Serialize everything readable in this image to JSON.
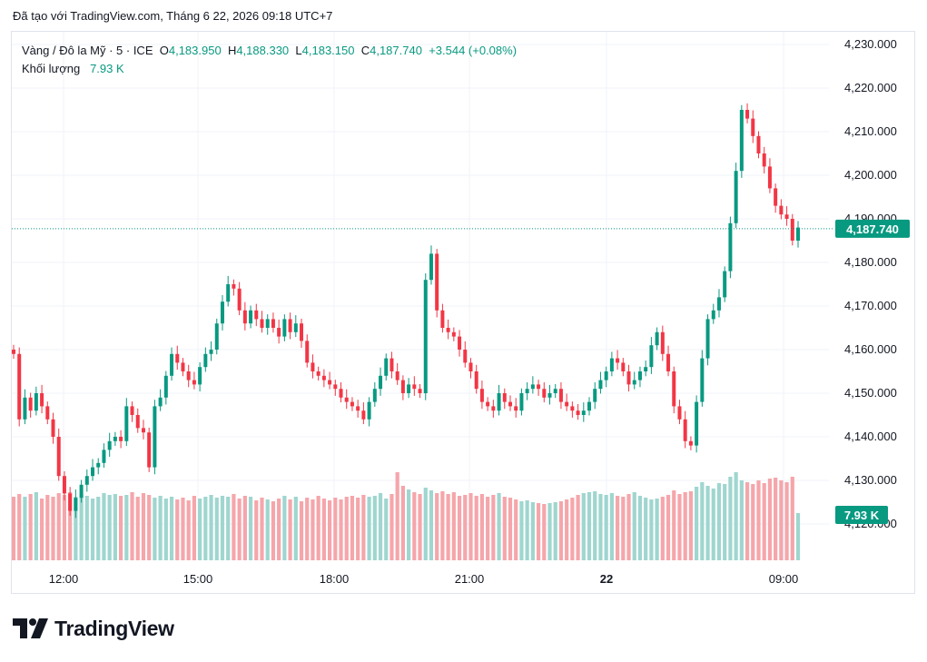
{
  "header": {
    "caption": "Đã tạo với TradingView.com, Tháng 6 22, 2026 09:18 UTC+7"
  },
  "legend": {
    "symbol": "Vàng / Đô la Mỹ · 5 · ICE",
    "o_label": "O",
    "o_value": "4,183.950",
    "h_label": "H",
    "h_value": "4,188.330",
    "l_label": "L",
    "l_value": "4,183.150",
    "c_label": "C",
    "c_value": "4,187.740",
    "change": "+3.544 (+0.08%)",
    "volume_label": "Khối lượng",
    "volume_value": "7.93 K"
  },
  "logo": {
    "text": "TradingView"
  },
  "colors": {
    "up": "#089981",
    "down": "#f23645",
    "up_volume": "#9fd6cf",
    "down_volume": "#f5a6ab",
    "grid": "#f0f3fa",
    "axis_text": "#131722"
  },
  "chart_data": {
    "type": "candlestick",
    "y_ticks": [
      "4,230.000",
      "4,220.000",
      "4,210.000",
      "4,200.000",
      "4,190.000",
      "4,180.000",
      "4,170.000",
      "4,160.000",
      "4,150.000",
      "4,140.000",
      "4,130.000",
      "4,120.000"
    ],
    "x_ticks": [
      "12:00",
      "15:00",
      "18:00",
      "21:00",
      "22",
      "09:00"
    ],
    "ylim": [
      4119,
      4230
    ],
    "last_price": 4187.74,
    "last_price_label": "4,187.740",
    "last_volume_label": "7.93 K",
    "closes": [
      4159,
      4144,
      4149,
      4146,
      4150,
      4147,
      4144,
      4140,
      4131,
      4127,
      4123,
      4126,
      4129,
      4131,
      4133,
      4134,
      4137,
      4139,
      4140,
      4139,
      4147,
      4145,
      4142,
      4141,
      4133,
      4147,
      4149,
      4154,
      4159,
      4157,
      4155,
      4153,
      4152,
      4156,
      4159,
      4160,
      4166,
      4171,
      4175,
      4174,
      4169,
      4166,
      4169,
      4167,
      4165,
      4167,
      4165,
      4163,
      4167,
      4164,
      4166,
      4162,
      4157,
      4155,
      4154,
      4153,
      4152,
      4151,
      4149,
      4148,
      4147,
      4146,
      4144,
      4148,
      4151,
      4154,
      4158,
      4155,
      4153,
      4150,
      4152,
      4151,
      4150,
      4176,
      4182,
      4169,
      4165,
      4164,
      4163,
      4160,
      4157,
      4155,
      4151,
      4148,
      4147,
      4146,
      4150,
      4148,
      4147,
      4146,
      4150,
      4151,
      4152,
      4151,
      4149,
      4150,
      4151,
      4148,
      4147,
      4146,
      4145,
      4146,
      4148,
      4151,
      4153,
      4155,
      4158,
      4157,
      4155,
      4152,
      4153,
      4155,
      4156,
      4161,
      4164,
      4159,
      4155,
      4147,
      4144,
      4139,
      4138,
      4148,
      4158,
      4167,
      4169,
      4172,
      4178,
      4189,
      4201,
      4215,
      4213,
      4209,
      4205,
      4202,
      4197,
      4193,
      4191,
      4190,
      4185,
      4188
    ],
    "volumes": [
      70,
      73,
      70,
      73,
      75,
      68,
      72,
      70,
      74,
      72,
      75,
      70,
      73,
      71,
      68,
      70,
      74,
      72,
      73,
      71,
      72,
      75,
      70,
      74,
      72,
      69,
      71,
      68,
      70,
      67,
      69,
      66,
      71,
      68,
      70,
      72,
      69,
      71,
      70,
      73,
      68,
      71,
      70,
      66,
      69,
      67,
      65,
      68,
      71,
      67,
      70,
      65,
      69,
      67,
      71,
      68,
      66,
      69,
      67,
      70,
      71,
      69,
      72,
      70,
      71,
      74,
      68,
      73,
      97,
      82,
      78,
      75,
      73,
      80,
      77,
      74,
      76,
      73,
      75,
      71,
      72,
      74,
      71,
      73,
      70,
      72,
      74,
      70,
      69,
      67,
      65,
      66,
      64,
      63,
      62,
      63,
      64,
      65,
      67,
      69,
      72,
      74,
      75,
      76,
      73,
      72,
      74,
      71,
      70,
      73,
      75,
      71,
      69,
      67,
      68,
      70,
      72,
      77,
      73,
      75,
      76,
      81,
      86,
      82,
      79,
      85,
      84,
      92,
      97,
      88,
      86,
      84,
      88,
      85,
      90,
      91,
      88,
      86,
      92,
      52
    ]
  }
}
